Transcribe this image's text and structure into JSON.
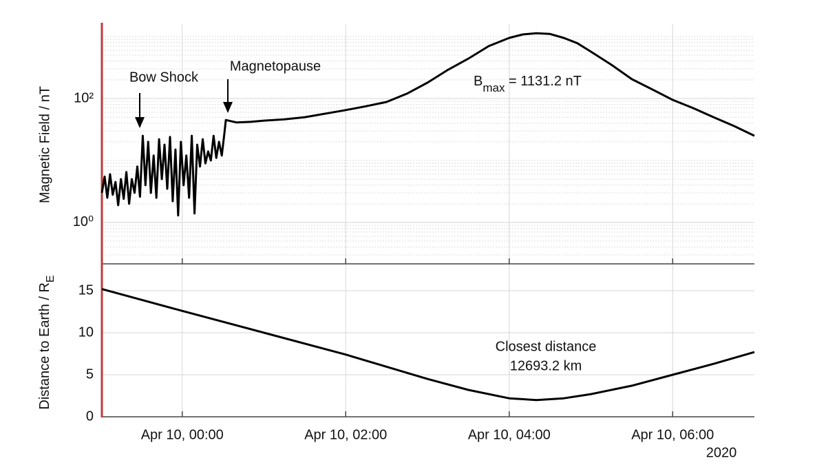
{
  "chart_data": [
    {
      "type": "line",
      "log_y": true,
      "grid": true,
      "minor_grid": true,
      "color": "#000000",
      "ylabel": "Magnetic Field / nT",
      "annotations": [
        "Bow Shock",
        "Magnetopause"
      ],
      "bmax": {
        "base": "B",
        "sub": "max",
        "rest": " = 1131.2 nT"
      },
      "xlim": [
        "2020-04-09T23:01",
        "2020-04-10T07:00"
      ],
      "xticks": [
        "2020-04-10T00:00",
        "2020-04-10T02:00",
        "2020-04-10T04:00",
        "2020-04-10T06:00"
      ],
      "ylim": [
        0.215,
        1585
      ],
      "yticks": [
        {
          "value": 1,
          "label": "10⁰"
        },
        {
          "value": 100,
          "label": "10²"
        }
      ],
      "x": [
        "2020-04-09T23:01",
        "2020-04-09T23:03",
        "2020-04-09T23:05",
        "2020-04-09T23:07",
        "2020-04-09T23:09",
        "2020-04-09T23:11",
        "2020-04-09T23:13",
        "2020-04-09T23:15",
        "2020-04-09T23:17",
        "2020-04-09T23:19",
        "2020-04-09T23:21",
        "2020-04-09T23:23",
        "2020-04-09T23:25",
        "2020-04-09T23:27",
        "2020-04-09T23:29",
        "2020-04-09T23:31",
        "2020-04-09T23:33",
        "2020-04-09T23:35",
        "2020-04-09T23:37",
        "2020-04-09T23:39",
        "2020-04-09T23:41",
        "2020-04-09T23:43",
        "2020-04-09T23:45",
        "2020-04-09T23:47",
        "2020-04-09T23:49",
        "2020-04-09T23:51",
        "2020-04-09T23:53",
        "2020-04-09T23:55",
        "2020-04-09T23:57",
        "2020-04-09T23:59",
        "2020-04-10T00:01",
        "2020-04-10T00:03",
        "2020-04-10T00:05",
        "2020-04-10T00:07",
        "2020-04-10T00:09",
        "2020-04-10T00:11",
        "2020-04-10T00:13",
        "2020-04-10T00:15",
        "2020-04-10T00:17",
        "2020-04-10T00:19",
        "2020-04-10T00:21",
        "2020-04-10T00:23",
        "2020-04-10T00:25",
        "2020-04-10T00:27",
        "2020-04-10T00:29",
        "2020-04-10T00:31",
        "2020-04-10T00:32",
        "2020-04-10T00:40",
        "2020-04-10T00:50",
        "2020-04-10T01:00",
        "2020-04-10T01:15",
        "2020-04-10T01:30",
        "2020-04-10T02:00",
        "2020-04-10T02:15",
        "2020-04-10T02:30",
        "2020-04-10T02:45",
        "2020-04-10T03:00",
        "2020-04-10T03:15",
        "2020-04-10T03:30",
        "2020-04-10T03:45",
        "2020-04-10T04:00",
        "2020-04-10T04:10",
        "2020-04-10T04:20",
        "2020-04-10T04:30",
        "2020-04-10T04:40",
        "2020-04-10T04:50",
        "2020-04-10T05:00",
        "2020-04-10T05:15",
        "2020-04-10T05:30",
        "2020-04-10T05:45",
        "2020-04-10T06:00",
        "2020-04-10T06:15",
        "2020-04-10T06:30",
        "2020-04-10T06:45",
        "2020-04-10T07:00"
      ],
      "values": [
        3,
        5.5,
        2.5,
        6,
        2.8,
        4.5,
        1.9,
        5,
        2.4,
        6.5,
        2,
        5,
        3,
        8,
        2.6,
        25,
        4,
        20,
        3,
        12,
        2.5,
        22,
        5,
        18,
        3.5,
        24,
        2.2,
        15,
        1.3,
        20,
        4,
        12,
        2.5,
        25,
        1.4,
        18,
        8,
        22,
        9,
        14,
        10,
        25,
        11,
        20,
        12,
        28,
        45,
        41,
        42,
        44,
        46,
        50,
        65,
        75,
        88,
        120,
        180,
        290,
        440,
        700,
        950,
        1080,
        1131.2,
        1100,
        950,
        780,
        570,
        350,
        205,
        140,
        95,
        70,
        50,
        36,
        25
      ]
    },
    {
      "type": "line",
      "log_y": false,
      "grid": true,
      "color": "#000000",
      "ylabel": {
        "base": "Distance to Earth / R",
        "sub": "E"
      },
      "annotation": [
        "Closest distance",
        "12693.2 km"
      ],
      "year_label": "2020",
      "xlim": [
        "2020-04-09T23:01",
        "2020-04-10T07:00"
      ],
      "xticks": [
        {
          "value": "2020-04-10T00:00",
          "label": "Apr 10, 00:00"
        },
        {
          "value": "2020-04-10T02:00",
          "label": "Apr 10, 02:00"
        },
        {
          "value": "2020-04-10T04:00",
          "label": "Apr 10, 04:00"
        },
        {
          "value": "2020-04-10T06:00",
          "label": "Apr 10, 06:00"
        }
      ],
      "ylim": [
        0,
        18.2
      ],
      "yticks": [
        0,
        5,
        10,
        15
      ],
      "x": [
        "2020-04-09T23:01",
        "2020-04-10T00:00",
        "2020-04-10T01:00",
        "2020-04-10T02:00",
        "2020-04-10T03:00",
        "2020-04-10T03:30",
        "2020-04-10T04:00",
        "2020-04-10T04:20",
        "2020-04-10T04:40",
        "2020-04-10T05:00",
        "2020-04-10T05:30",
        "2020-04-10T06:00",
        "2020-04-10T06:30",
        "2020-04-10T07:00"
      ],
      "values": [
        15.2,
        12.6,
        10.0,
        7.4,
        4.5,
        3.2,
        2.2,
        1.99,
        2.2,
        2.7,
        3.7,
        5.0,
        6.3,
        7.7
      ]
    }
  ]
}
